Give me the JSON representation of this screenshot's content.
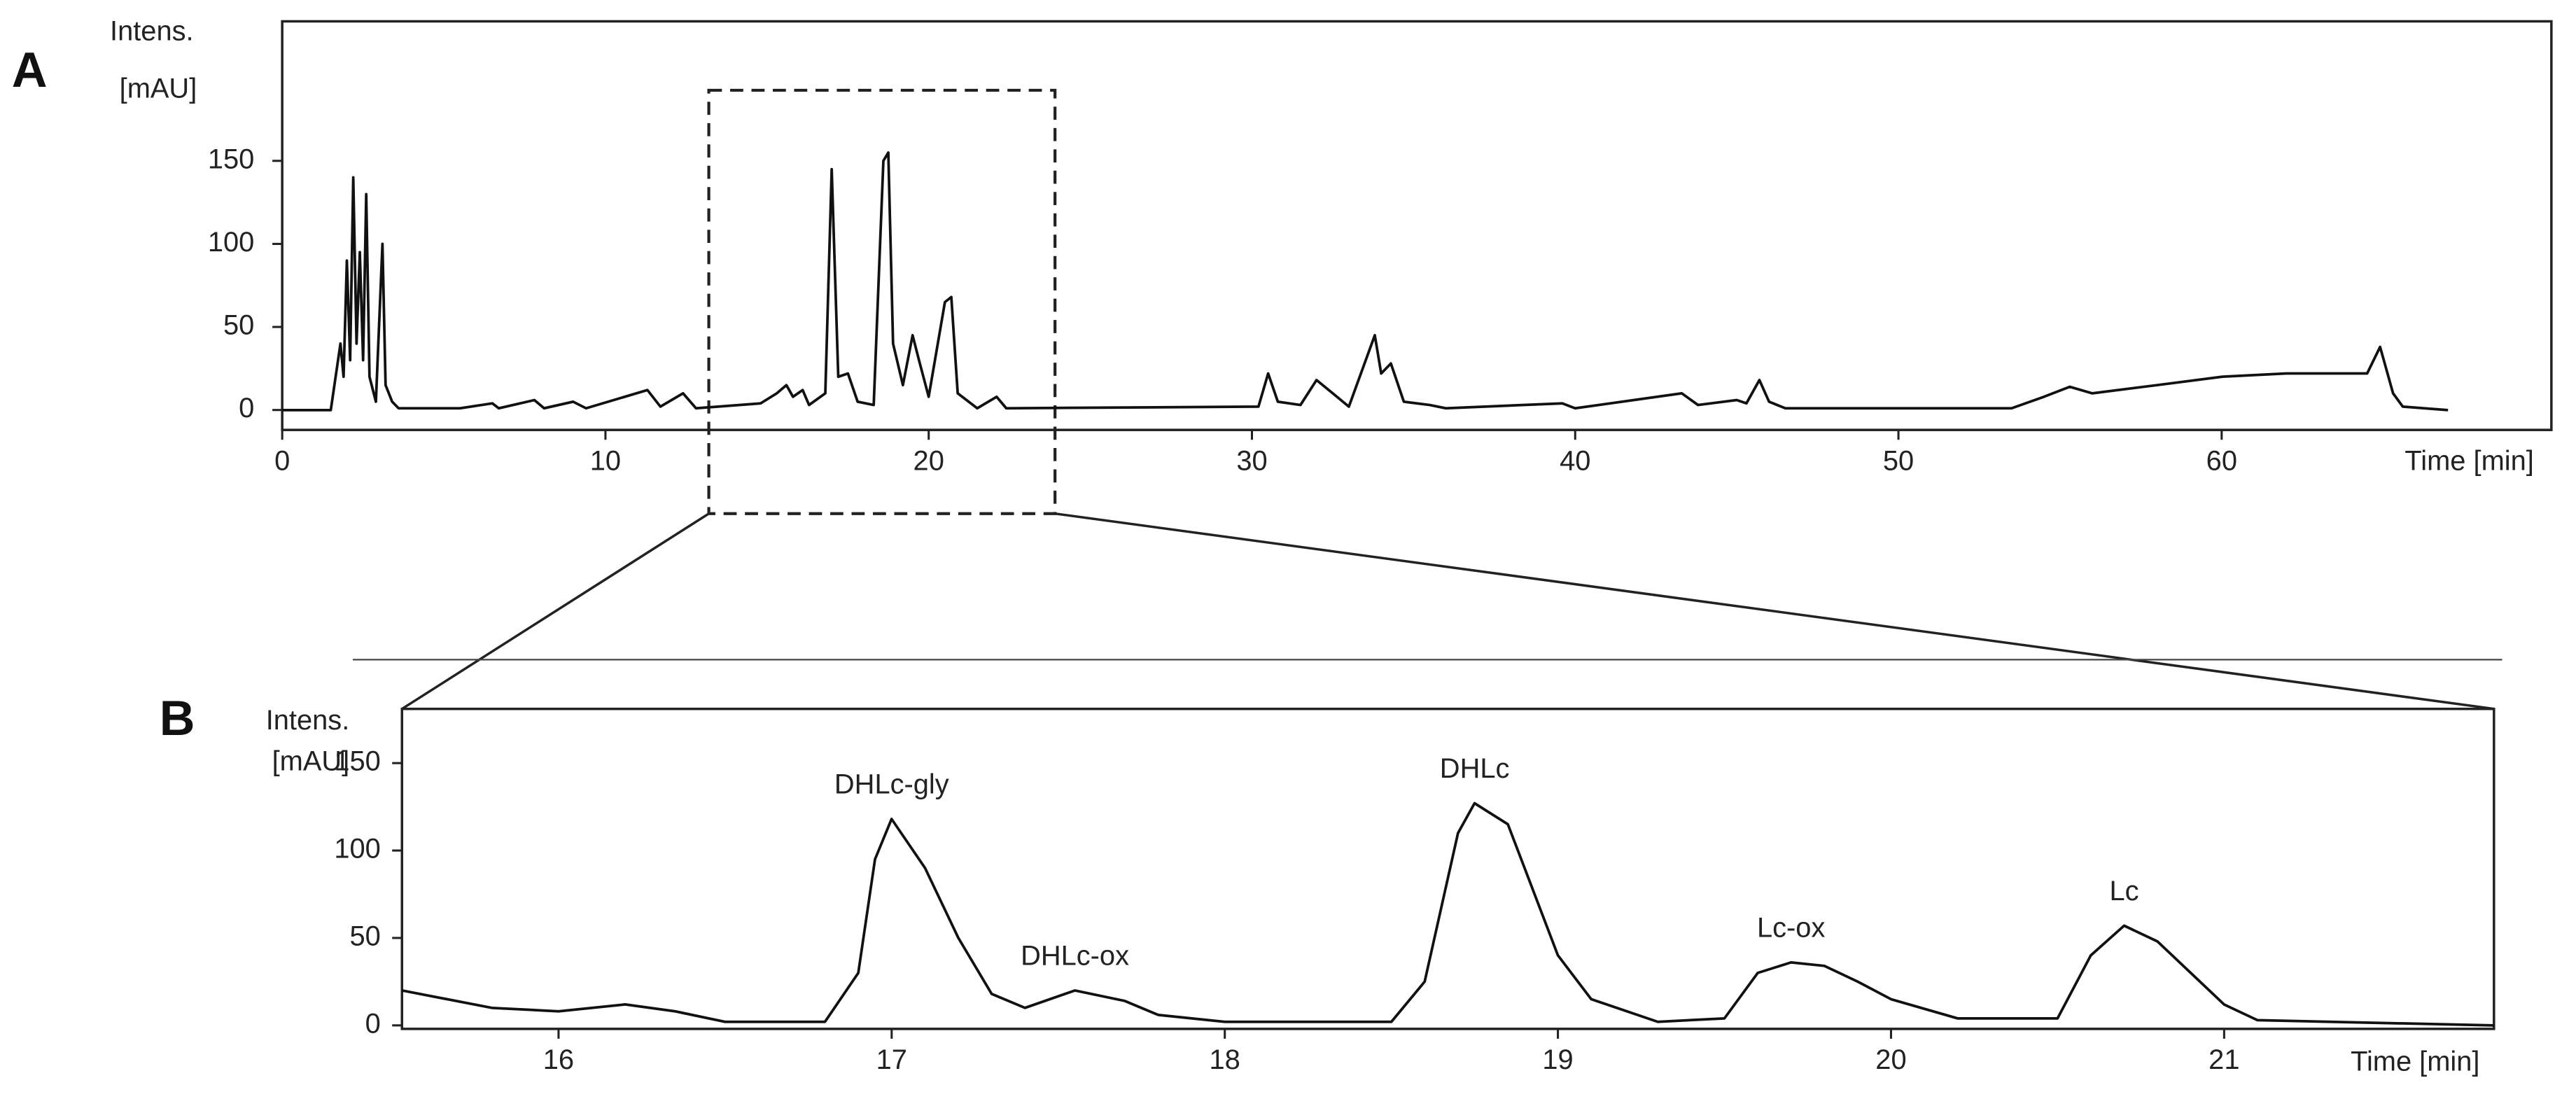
{
  "chart_data": [
    {
      "type": "line",
      "panel": "A",
      "ylabel": [
        "Intens.",
        "[mAU]"
      ],
      "xlabel": "Time [min]",
      "x": [
        0,
        1.5,
        1.8,
        1.9,
        2.0,
        2.1,
        2.2,
        2.3,
        2.4,
        2.5,
        2.6,
        2.7,
        2.9,
        3.1,
        3.2,
        3.4,
        3.6,
        5.5,
        6.5,
        6.7,
        7.8,
        8.1,
        9.0,
        9.4,
        11.3,
        11.7,
        12.4,
        12.8,
        14.8,
        15.3,
        15.6,
        15.8,
        16.1,
        16.3,
        16.8,
        17.0,
        17.2,
        17.5,
        17.8,
        18.3,
        18.6,
        18.75,
        18.9,
        19.2,
        19.5,
        19.7,
        20.0,
        20.5,
        20.7,
        20.9,
        21.5,
        22.1,
        22.4,
        30.2,
        30.5,
        30.8,
        31.5,
        32.0,
        32.5,
        33.0,
        33.8,
        34.0,
        34.3,
        34.7,
        35.5,
        36,
        39.6,
        40,
        43.3,
        43.8,
        45,
        45.3,
        45.7,
        46,
        46.5,
        53.5,
        54.5,
        55.3,
        56,
        58,
        60,
        62,
        64.5,
        64.9,
        65.3,
        65.6,
        67
      ],
      "values": [
        0,
        0,
        40,
        20,
        90,
        30,
        140,
        40,
        95,
        30,
        130,
        20,
        5,
        100,
        15,
        5,
        1,
        1,
        4,
        1,
        6,
        1,
        5,
        1,
        12,
        2,
        10,
        1,
        4,
        10,
        15,
        8,
        12,
        3,
        10,
        145,
        20,
        22,
        5,
        3,
        150,
        155,
        40,
        15,
        45,
        30,
        8,
        65,
        68,
        10,
        1,
        8,
        1,
        2,
        22,
        5,
        3,
        18,
        10,
        2,
        45,
        22,
        28,
        5,
        3,
        1,
        4,
        1,
        10,
        3,
        6,
        4,
        18,
        5,
        1,
        1,
        8,
        14,
        10,
        15,
        20,
        22,
        22,
        38,
        10,
        2,
        0
      ],
      "xlim": [
        0,
        70.2
      ],
      "ylim": [
        -12,
        234
      ],
      "xticks": [
        0,
        10,
        20,
        30,
        40,
        50,
        60
      ],
      "yticks": [
        0,
        50,
        100,
        150
      ]
    },
    {
      "type": "line",
      "panel": "B",
      "ylabel": [
        "Intens.",
        "[mAU]"
      ],
      "xlabel": "Time [min]",
      "x": [
        15.53,
        15.8,
        16.0,
        16.2,
        16.35,
        16.5,
        16.8,
        16.9,
        16.95,
        17.0,
        17.1,
        17.2,
        17.3,
        17.4,
        17.55,
        17.7,
        17.8,
        18.0,
        18.5,
        18.6,
        18.7,
        18.75,
        18.85,
        18.9,
        19.0,
        19.1,
        19.3,
        19.5,
        19.6,
        19.7,
        19.8,
        19.9,
        20.0,
        20.2,
        20.5,
        20.6,
        20.7,
        20.8,
        20.9,
        21.0,
        21.1,
        21.81
      ],
      "values": [
        20,
        10,
        8,
        12,
        8,
        2,
        2,
        30,
        95,
        118,
        90,
        50,
        18,
        10,
        20,
        14,
        6,
        2,
        2,
        25,
        110,
        127,
        115,
        90,
        40,
        15,
        2,
        4,
        30,
        36,
        34,
        25,
        15,
        4,
        4,
        40,
        57,
        48,
        30,
        12,
        3,
        0
      ],
      "xlim": [
        15.53,
        21.81
      ],
      "ylim": [
        -2,
        181
      ],
      "xticks": [
        16,
        17,
        18,
        19,
        20,
        21
      ],
      "yticks": [
        0,
        50,
        100,
        150
      ],
      "annotations": [
        {
          "text": "DHLc-gly",
          "x": 17.0
        },
        {
          "text": "DHLc-ox",
          "x": 17.55
        },
        {
          "text": "DHLc",
          "x": 18.75
        },
        {
          "text": "Lc-ox",
          "x": 19.7
        },
        {
          "text": "Lc",
          "x": 20.7
        }
      ]
    }
  ]
}
